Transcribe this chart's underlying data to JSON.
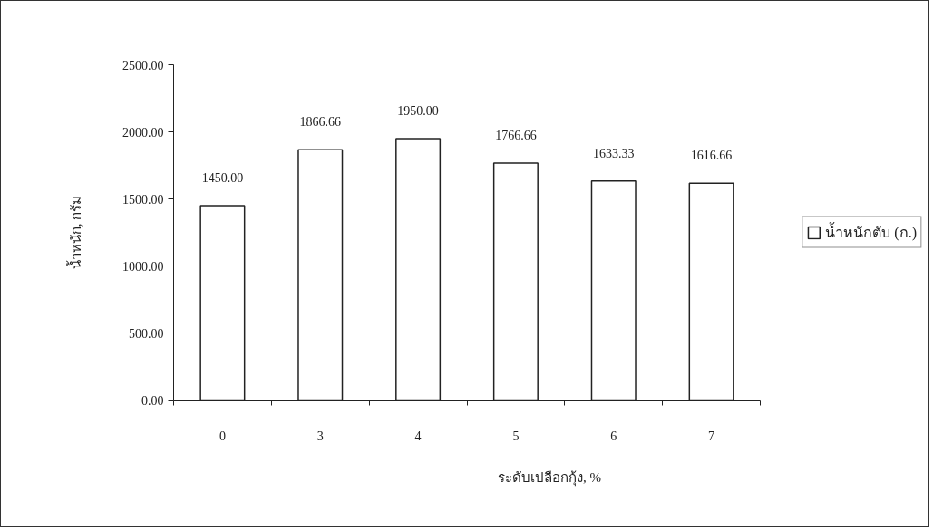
{
  "chart_data": {
    "type": "bar",
    "xlabel": "ระดับเปลือกกุ้ง, %",
    "ylabel": "น้ำหนัก, กรัม",
    "categories": [
      "0",
      "3",
      "4",
      "5",
      "6",
      "7"
    ],
    "series": [
      {
        "name": "น้ำหนักตับ (ก.)",
        "color": "#ffffff",
        "values": [
          1450.0,
          1866.66,
          1950.0,
          1766.66,
          1633.33,
          1616.66
        ],
        "value_labels": [
          "1450.00",
          "1866.66",
          "1950.00",
          "1766.66",
          "1633.33",
          "1616.66"
        ]
      }
    ],
    "ylim": [
      0,
      2500
    ],
    "yticks": [
      {
        "value": 0,
        "label": "0.00"
      },
      {
        "value": 500,
        "label": "500.00"
      },
      {
        "value": 1000,
        "label": "1000.00"
      },
      {
        "value": 1500,
        "label": "1500.00"
      },
      {
        "value": 2000,
        "label": "2000.00"
      },
      {
        "value": 2500,
        "label": "2500.00"
      }
    ],
    "legend": "right"
  }
}
